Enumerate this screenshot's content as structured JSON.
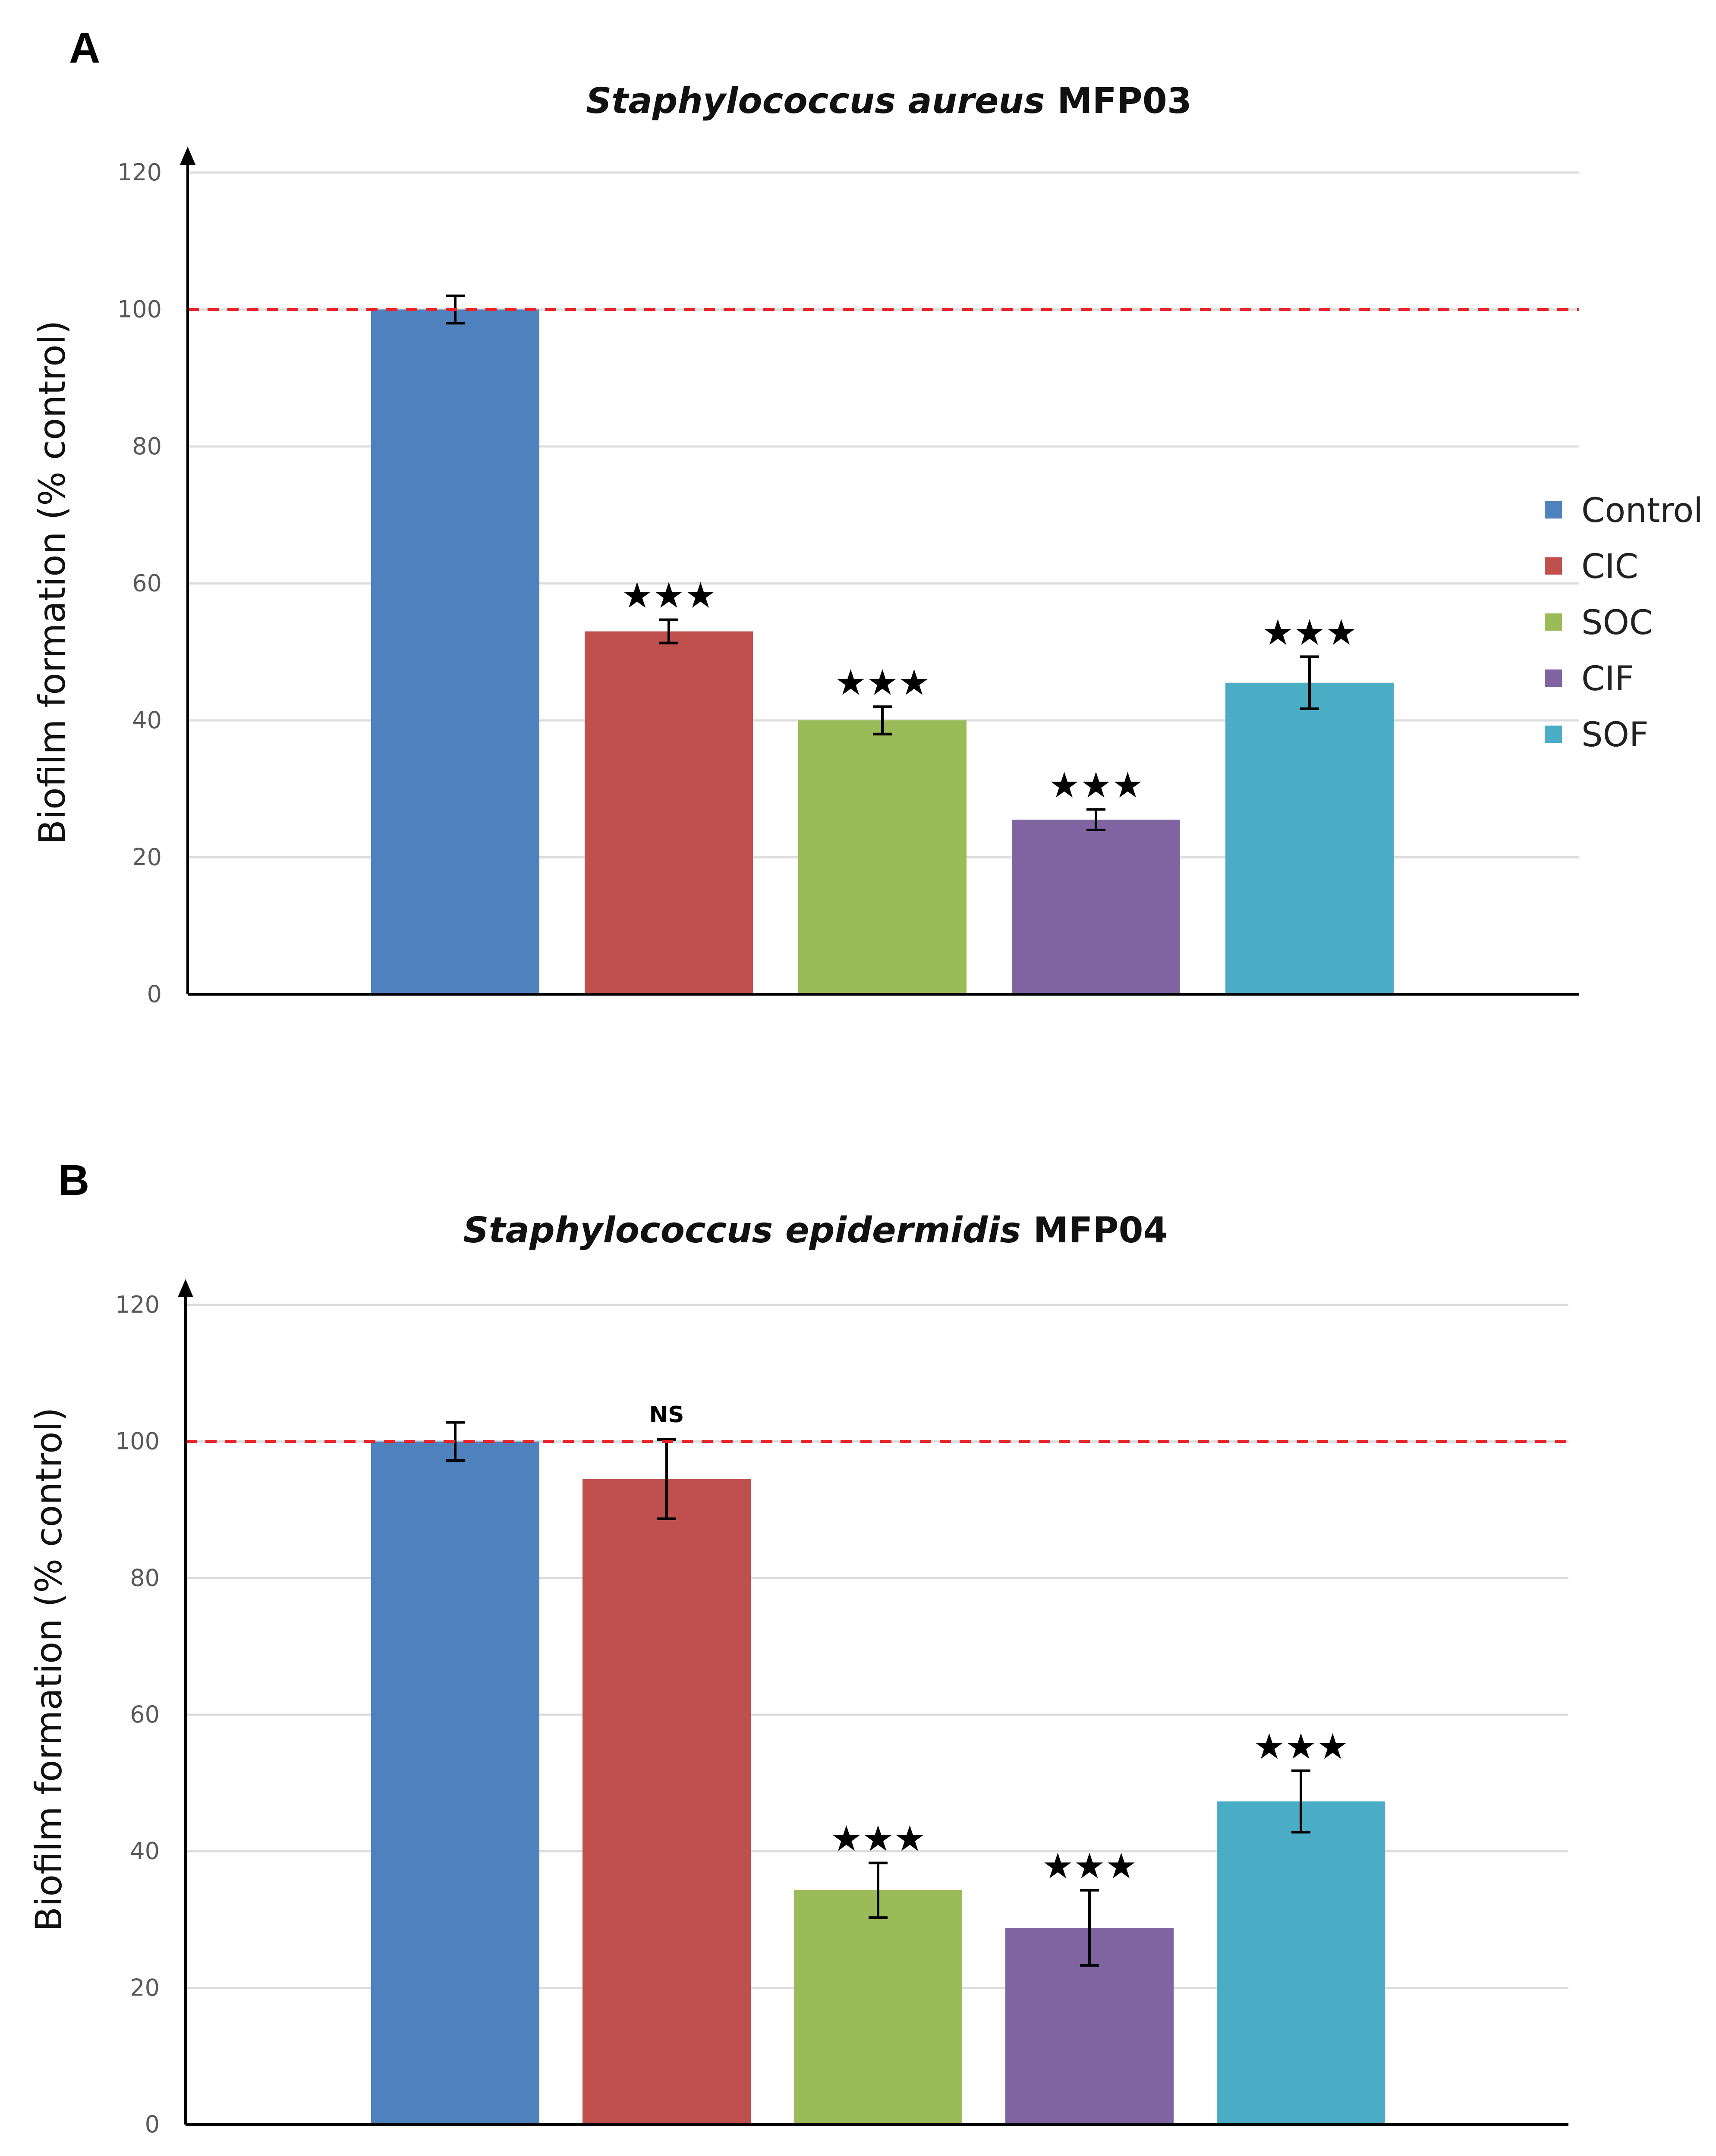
{
  "legend": {
    "items": [
      {
        "label": "Control",
        "color": "#4f81bd"
      },
      {
        "label": "CIC",
        "color": "#c0504d"
      },
      {
        "label": "SOC",
        "color": "#9bbb59"
      },
      {
        "label": "CIF",
        "color": "#8064a2"
      },
      {
        "label": "SOF",
        "color": "#4bacc6"
      }
    ]
  },
  "reference_line": {
    "value": 100,
    "color": "#e8232a"
  },
  "chart_data": [
    {
      "panel": "A",
      "type": "bar",
      "title": {
        "italic": "Staphylococcus aureus",
        "plain": "MFP03"
      },
      "xlabel": "",
      "ylabel": "Biofilm formation (% control)",
      "ylim": [
        0,
        120
      ],
      "yticks": [
        0,
        20,
        40,
        60,
        80,
        100,
        120
      ],
      "grid": true,
      "categories": [
        "Control",
        "CIC",
        "SOC",
        "CIF",
        "SOF"
      ],
      "values": [
        100,
        53,
        40,
        25.5,
        45.5
      ],
      "errors": [
        2,
        1.7,
        2,
        1.5,
        3.8
      ],
      "significance": [
        "",
        "★★★",
        "★★★",
        "★★★",
        "★★★"
      ]
    },
    {
      "panel": "B",
      "type": "bar",
      "title": {
        "italic": "Staphylococcus epidermidis",
        "plain": "MFP04"
      },
      "xlabel": "",
      "ylabel": "Biofilm formation (% control)",
      "ylim": [
        0,
        120
      ],
      "yticks": [
        0,
        20,
        40,
        60,
        80,
        100,
        120
      ],
      "grid": true,
      "categories": [
        "Control",
        "CIC",
        "SOC",
        "CIF",
        "SOF"
      ],
      "values": [
        100,
        94.5,
        34.3,
        28.8,
        47.3
      ],
      "errors": [
        2.8,
        5.8,
        4,
        5.5,
        4.5
      ],
      "significance": [
        "",
        "NS",
        "★★★",
        "★★★",
        "★★★"
      ]
    }
  ]
}
